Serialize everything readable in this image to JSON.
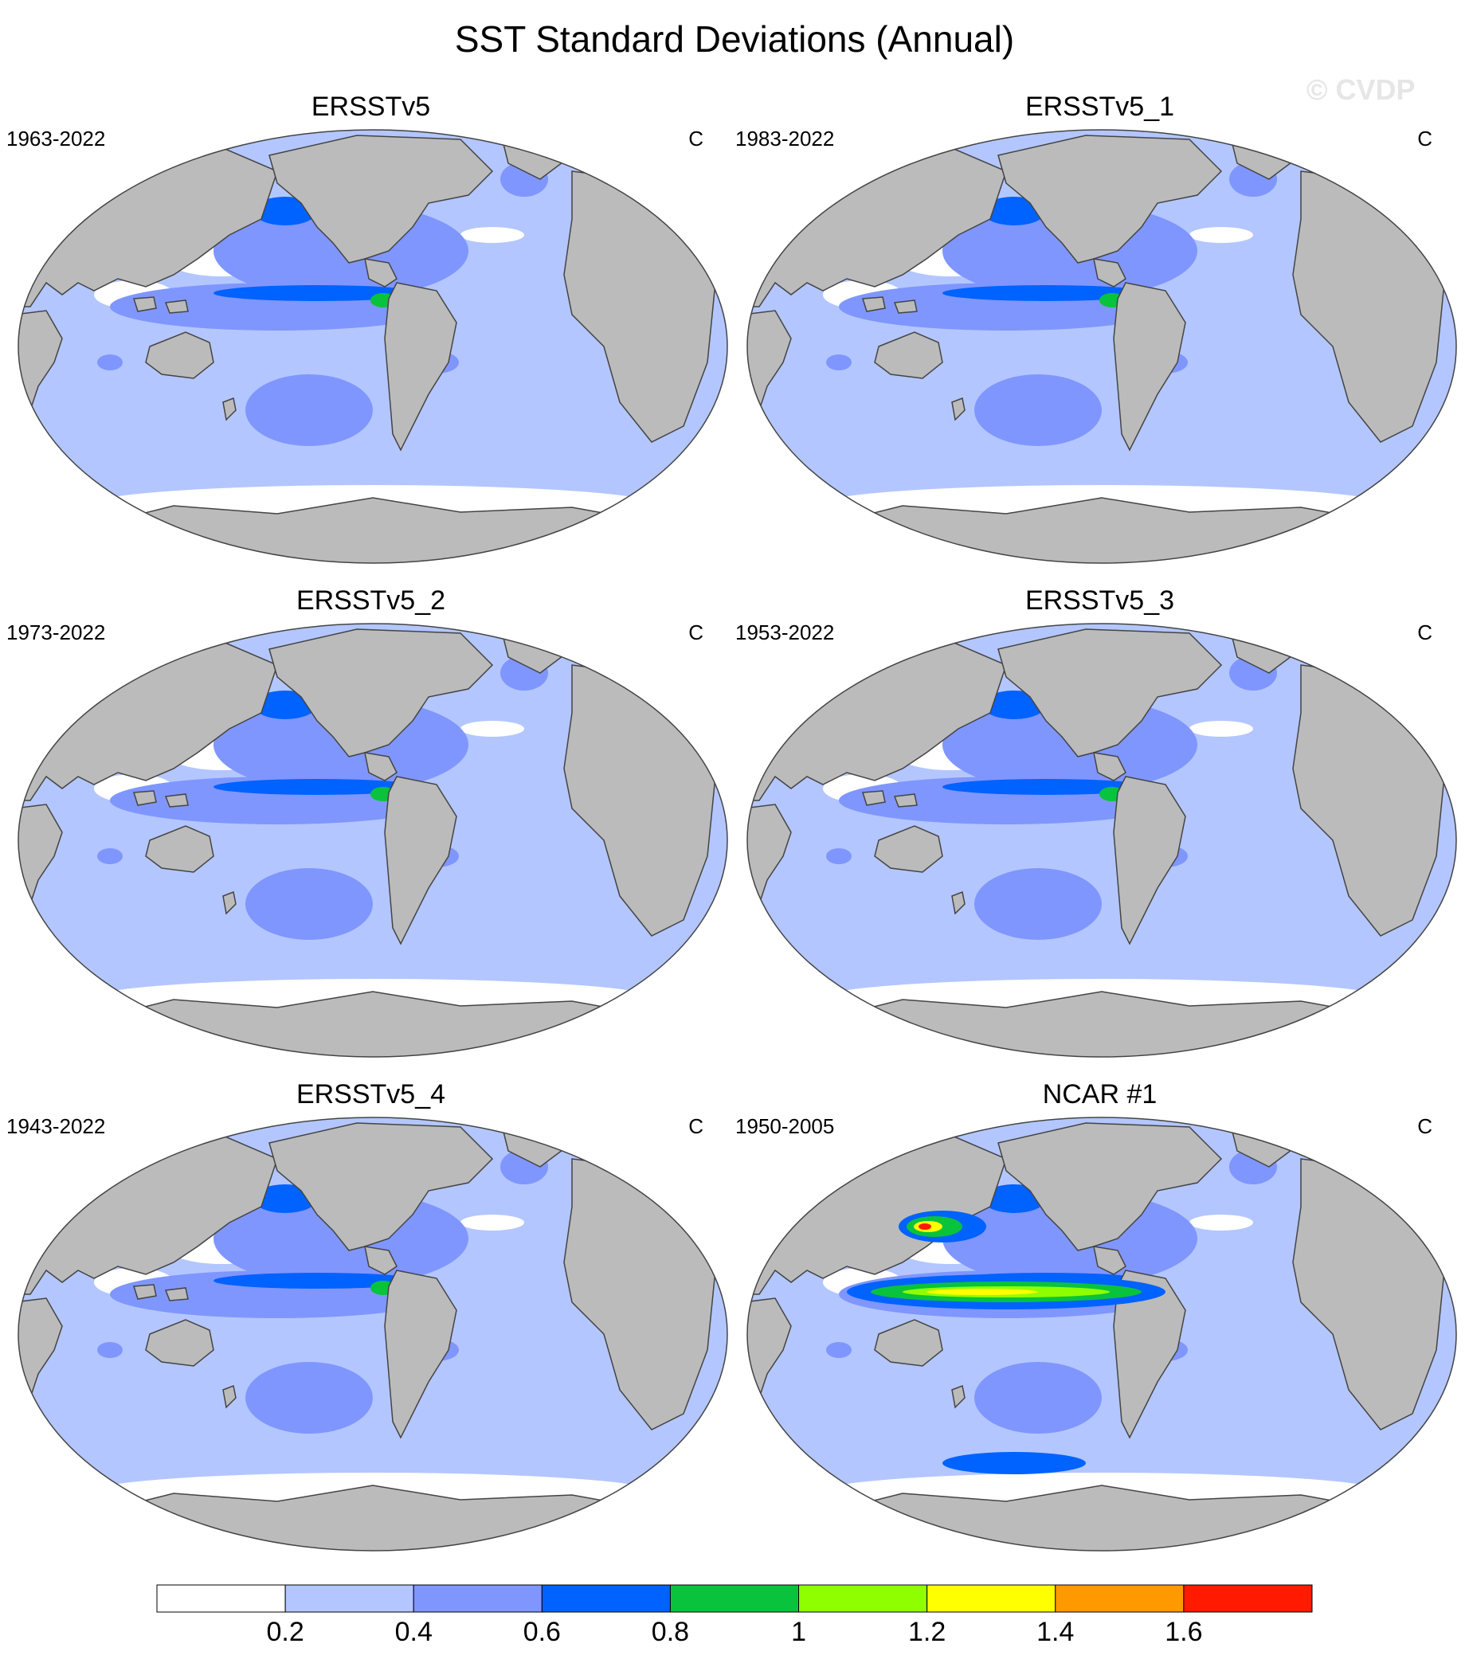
{
  "title": "SST Standard Deviations (Annual)",
  "watermark": "© CVDP",
  "colors": {
    "ocean_lt": "#b3c6ff",
    "ocean_md": "#7f96ff",
    "ocean_dk": "#0062ff",
    "green": "#09c33c",
    "land": "#bbbbbb",
    "border": "#444444"
  },
  "panels": [
    {
      "title": "ERSSTv5",
      "period": "1963-2022",
      "unit": "C"
    },
    {
      "title": "ERSSTv5_1",
      "period": "1983-2022",
      "unit": "C"
    },
    {
      "title": "ERSSTv5_2",
      "period": "1973-2022",
      "unit": "C"
    },
    {
      "title": "ERSSTv5_3",
      "period": "1953-2022",
      "unit": "C"
    },
    {
      "title": "ERSSTv5_4",
      "period": "1943-2022",
      "unit": "C"
    },
    {
      "title": "NCAR #1",
      "period": "1950-2005",
      "unit": "C"
    }
  ],
  "colorbar": {
    "colors": [
      "#ffffff",
      "#b3c6ff",
      "#7f96ff",
      "#0062ff",
      "#09c33c",
      "#8fff00",
      "#ffff00",
      "#ff9900",
      "#ff1a00"
    ],
    "labels": [
      "0.2",
      "0.4",
      "0.6",
      "0.8",
      "1",
      "1.2",
      "1.4",
      "1.6"
    ]
  }
}
